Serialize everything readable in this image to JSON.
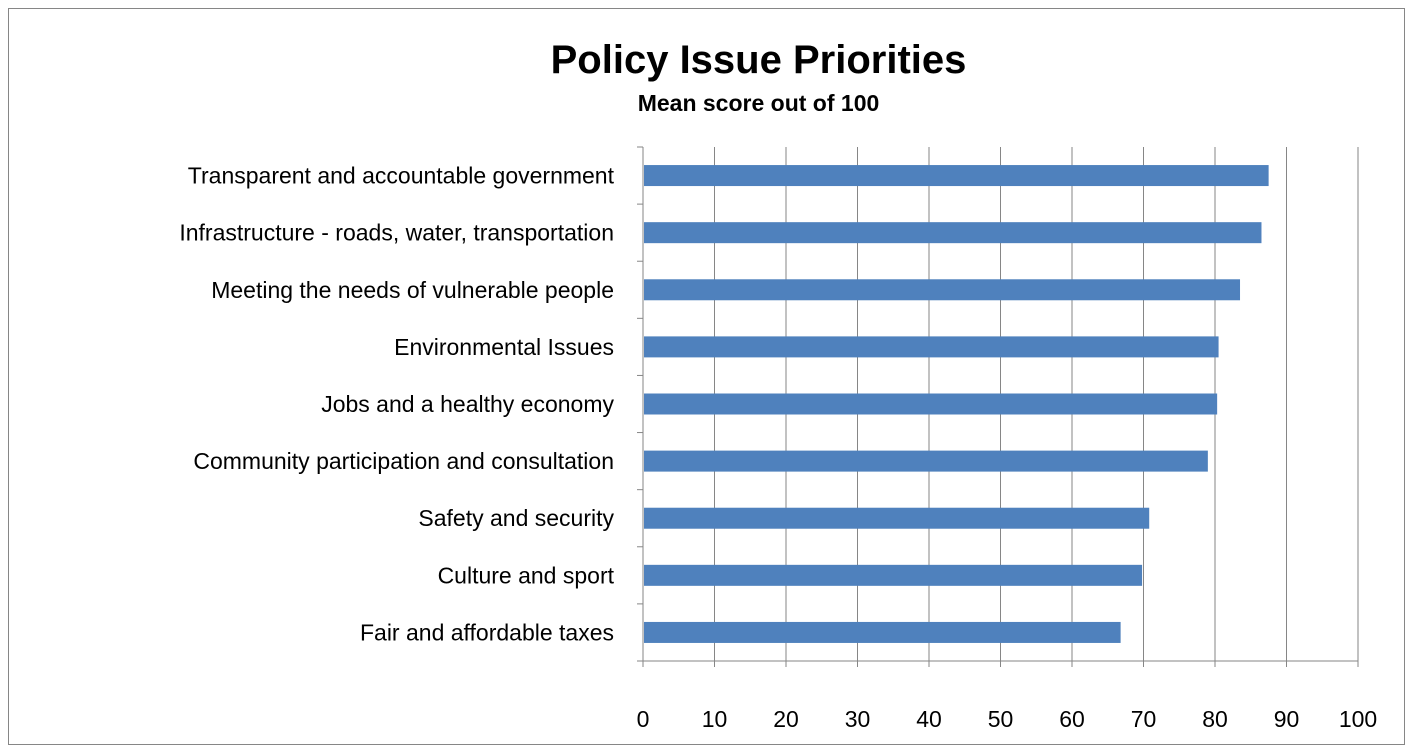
{
  "chart_data": {
    "type": "bar",
    "orientation": "horizontal",
    "title": "Policy Issue Priorities",
    "subtitle": "Mean score out of 100",
    "xlabel": "",
    "ylabel": "",
    "categories": [
      "Transparent and accountable government",
      "Infrastructure - roads, water, transportation",
      "Meeting the needs of vulnerable people",
      "Environmental Issues",
      "Jobs and a healthy economy",
      "Community participation and consultation",
      "Safety and security",
      "Culture and sport",
      "Fair and affordable taxes"
    ],
    "values": [
      87.5,
      86.5,
      83.5,
      80.5,
      80.3,
      79.0,
      70.8,
      69.8,
      66.8
    ],
    "xlim": [
      0,
      100
    ],
    "xticks": [
      "0",
      "10",
      "20",
      "30",
      "40",
      "50",
      "60",
      "70",
      "80",
      "90",
      "100"
    ],
    "grid": true,
    "legend": "none",
    "bar_color": "#4F81BD",
    "grid_color": "#868686"
  }
}
